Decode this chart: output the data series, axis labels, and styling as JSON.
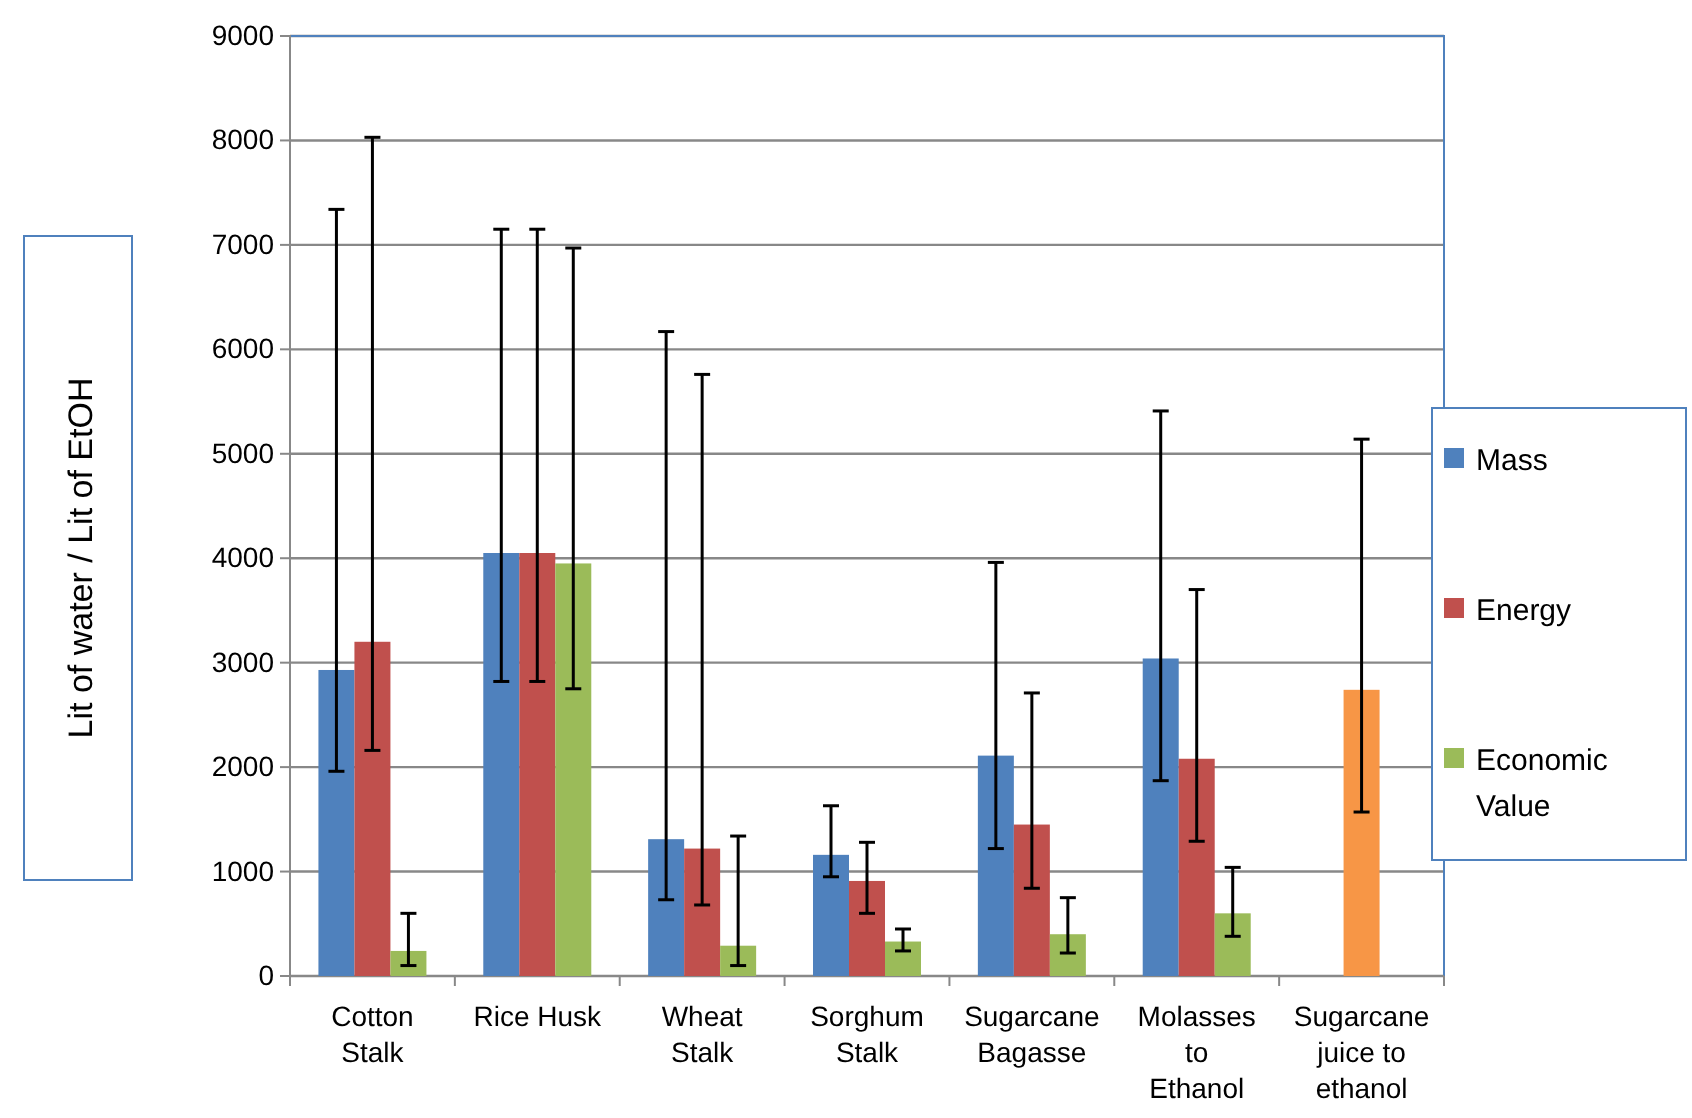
{
  "chart_data": {
    "type": "bar",
    "ylabel": "Lit of water / Lit of EtOH",
    "categories": [
      "Cotton Stalk",
      "Rice Husk",
      "Wheat Stalk",
      "Sorghum Stalk",
      "Sugarcane Bagasse",
      "Molasses to Ethanol",
      "Sugarcane juice to ethanol"
    ],
    "series": [
      {
        "name": "Mass",
        "color": "#4f81bd",
        "values": [
          2930,
          4050,
          1310,
          1160,
          2110,
          3040,
          null
        ],
        "errors": [
          [
            1960,
            7340
          ],
          [
            2820,
            7150
          ],
          [
            730,
            6170
          ],
          [
            950,
            1630
          ],
          [
            1220,
            3960
          ],
          [
            1870,
            5410
          ],
          null
        ]
      },
      {
        "name": "Energy",
        "color": "#c0504d",
        "values": [
          3200,
          4050,
          1220,
          910,
          1450,
          2080,
          null
        ],
        "errors": [
          [
            2160,
            8030
          ],
          [
            2820,
            7150
          ],
          [
            680,
            5760
          ],
          [
            600,
            1280
          ],
          [
            840,
            2710
          ],
          [
            1290,
            3700
          ],
          null
        ]
      },
      {
        "name": "Economic Value",
        "color": "#9bbb59",
        "values": [
          240,
          3950,
          290,
          330,
          400,
          600,
          null
        ],
        "errors": [
          [
            100,
            600
          ],
          [
            2750,
            6970
          ],
          [
            100,
            1340
          ],
          [
            240,
            450
          ],
          [
            220,
            750
          ],
          [
            380,
            1040
          ],
          null
        ]
      },
      {
        "color": "#f79646",
        "values": [
          null,
          null,
          null,
          null,
          null,
          null,
          2740
        ],
        "errors": [
          null,
          null,
          null,
          null,
          null,
          null,
          [
            1570,
            5140
          ]
        ]
      }
    ],
    "ylim": [
      0,
      9000
    ],
    "yticks": [
      0,
      1000,
      2000,
      3000,
      4000,
      5000,
      6000,
      7000,
      8000,
      9000
    ],
    "grid": "y",
    "legend": "right"
  }
}
